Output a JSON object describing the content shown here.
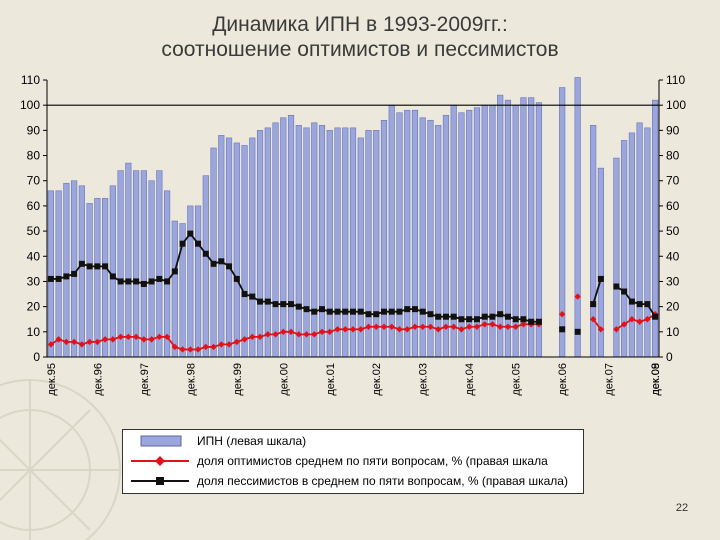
{
  "slide": {
    "title_line1": "Динамика ИПН в 1993-2009гг.:",
    "title_line2": "соотношение оптимистов и пессимистов",
    "page_number": "22"
  },
  "chart_data": {
    "type": "bar+line",
    "left_axis": {
      "min": 0,
      "max": 110,
      "step": 10
    },
    "right_axis": {
      "min": 0,
      "max": 110,
      "step": 10
    },
    "reference_line": 100,
    "x_tick_labels": [
      "дек.95",
      "дек.96",
      "дек.97",
      "дек.98",
      "дек.99",
      "дек.00",
      "дек.01",
      "дек.02",
      "дек.03",
      "дек.04",
      "дек.05",
      "дек.06",
      "дек.07",
      "дек.08",
      "дек.09"
    ],
    "periods_per_year": 12,
    "start": "дек.95",
    "series": [
      {
        "name": "ИПН (левая шкала)",
        "kind": "bar",
        "color": "#9aa6dc",
        "values": [
          66,
          66,
          69,
          70,
          68,
          61,
          63,
          63,
          68,
          74,
          77,
          74,
          74,
          70,
          74,
          66,
          54,
          53,
          60,
          60,
          72,
          83,
          88,
          87,
          85,
          84,
          87,
          90,
          91,
          93,
          95,
          96,
          92,
          91,
          93,
          92,
          90,
          91,
          91,
          91,
          87,
          90,
          90,
          94,
          100,
          97,
          98,
          98,
          95,
          94,
          92,
          96,
          100,
          97,
          98,
          99,
          100,
          100,
          104,
          102,
          100,
          103,
          103,
          101,
          null,
          null,
          107,
          null,
          111,
          null,
          92,
          75,
          null,
          79,
          86,
          89,
          93,
          91,
          102
        ]
      },
      {
        "name": "доля оптимистов среднем по пяти вопросам, % (правая шкала",
        "kind": "line",
        "color": "#e3121a",
        "marker": "diamond",
        "values": [
          5,
          7,
          6,
          6,
          5,
          6,
          6,
          7,
          7,
          8,
          8,
          8,
          7,
          7,
          8,
          8,
          4,
          3,
          3,
          3,
          4,
          4,
          5,
          5,
          6,
          7,
          8,
          8,
          9,
          9,
          10,
          10,
          9,
          9,
          9,
          10,
          10,
          11,
          11,
          11,
          11,
          12,
          12,
          12,
          12,
          11,
          11,
          12,
          12,
          12,
          11,
          12,
          12,
          11,
          12,
          12,
          13,
          13,
          12,
          12,
          12,
          13,
          13,
          13,
          null,
          null,
          17,
          null,
          24,
          null,
          15,
          11,
          null,
          11,
          13,
          15,
          14,
          15,
          17
        ]
      },
      {
        "name": "доля пессимистов в среднем по пяти вопросам, % (правая шкала)",
        "kind": "line",
        "color": "#111111",
        "marker": "square",
        "values": [
          31,
          31,
          32,
          33,
          37,
          36,
          36,
          36,
          32,
          30,
          30,
          30,
          29,
          30,
          31,
          30,
          34,
          45,
          49,
          45,
          41,
          37,
          38,
          36,
          31,
          25,
          24,
          22,
          22,
          21,
          21,
          21,
          20,
          19,
          18,
          19,
          18,
          18,
          18,
          18,
          18,
          17,
          17,
          18,
          18,
          18,
          19,
          19,
          18,
          17,
          16,
          16,
          16,
          15,
          15,
          15,
          16,
          16,
          17,
          16,
          15,
          15,
          14,
          14,
          null,
          null,
          11,
          null,
          10,
          null,
          21,
          31,
          null,
          28,
          26,
          22,
          21,
          21,
          16
        ]
      }
    ]
  },
  "legend": {
    "items": [
      "ИПН (левая шкала)",
      "доля оптимистов среднем по пяти вопросам, % (правая шкала",
      "доля пессимистов в среднем по пяти вопросам, % (правая шкала)"
    ]
  }
}
